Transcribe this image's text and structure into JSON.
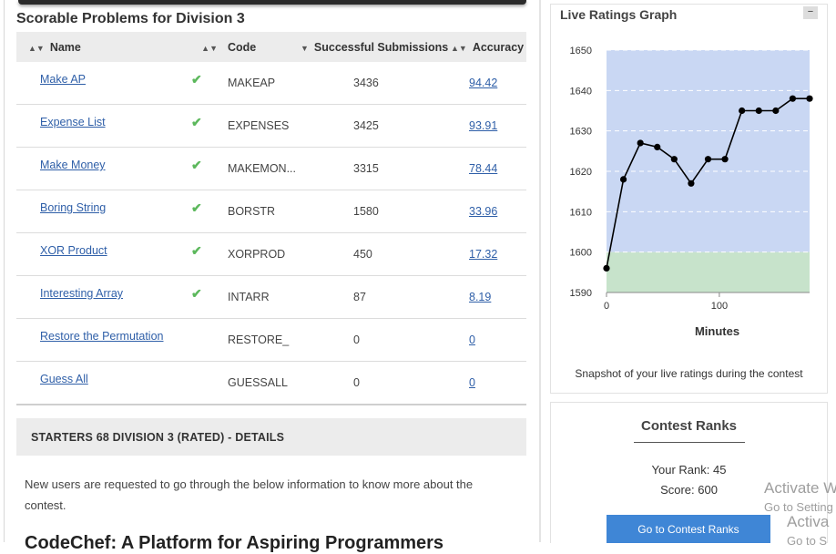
{
  "problems_section": {
    "title": "Scorable Problems for Division 3",
    "headers": {
      "name": "Name",
      "code": "Code",
      "submissions": "Successful Submissions",
      "accuracy": "Accuracy"
    },
    "rows": [
      {
        "name": "Make AP",
        "solved": true,
        "code": "MAKEAP",
        "submissions": "3436",
        "accuracy": "94.42"
      },
      {
        "name": "Expense List",
        "solved": true,
        "code": "EXPENSES",
        "submissions": "3425",
        "accuracy": "93.91"
      },
      {
        "name": "Make Money",
        "solved": true,
        "code": "MAKEMON...",
        "submissions": "3315",
        "accuracy": "78.44"
      },
      {
        "name": "Boring String",
        "solved": true,
        "code": "BORSTR",
        "submissions": "1580",
        "accuracy": "33.96"
      },
      {
        "name": "XOR Product",
        "solved": true,
        "code": "XORPROD",
        "submissions": "450",
        "accuracy": "17.32"
      },
      {
        "name": "Interesting Array",
        "solved": true,
        "code": "INTARR",
        "submissions": "87",
        "accuracy": "8.19"
      },
      {
        "name": "Restore the Permutation",
        "solved": false,
        "code": "RESTORE_",
        "submissions": "0",
        "accuracy": "0"
      },
      {
        "name": "Guess All",
        "solved": false,
        "code": "GUESSALL",
        "submissions": "0",
        "accuracy": "0"
      }
    ]
  },
  "details": {
    "heading": "STARTERS 68 DIVISION 3 (RATED) - DETAILS",
    "text": "New users are requested to go through the below information to know more about the contest.",
    "next_heading": "CodeChef: A Platform for Aspiring Programmers"
  },
  "graph": {
    "title": "Live Ratings Graph",
    "collapse_label": "−",
    "xlabel": "Minutes",
    "caption": "Snapshot of your live ratings during the contest",
    "yticks": [
      "1650",
      "1640",
      "1630",
      "1620",
      "1610",
      "1600",
      "1590"
    ],
    "xticks": [
      "0",
      "100"
    ]
  },
  "chart_data": {
    "type": "line",
    "title": "Live Ratings Graph",
    "xlabel": "Minutes",
    "ylabel": "",
    "xlim": [
      0,
      180
    ],
    "ylim": [
      1590,
      1650
    ],
    "band_threshold": 1600,
    "band_colors": {
      "above": "#c9d7f3",
      "below": "#c7e3cb"
    },
    "grid": true,
    "series": [
      {
        "x": [
          0,
          15,
          30,
          45,
          60,
          75,
          90,
          105,
          120,
          135,
          150,
          165,
          180
        ],
        "y": [
          1596,
          1618,
          1627,
          1626,
          1623,
          1617,
          1623,
          1623,
          1635,
          1635,
          1635,
          1638,
          1638
        ]
      }
    ]
  },
  "ranks": {
    "title": "Contest Ranks",
    "your_rank": "Your Rank: 45",
    "score": "Score: 600",
    "button": "Go to Contest Ranks"
  },
  "watermark": {
    "line1": "Activate W",
    "line2": "Go to Setting",
    "line3": "Activa",
    "line4": "Go to S"
  },
  "colors": {
    "link": "#2f5fa8",
    "check": "#5cb85c",
    "button": "#3f86d6"
  }
}
